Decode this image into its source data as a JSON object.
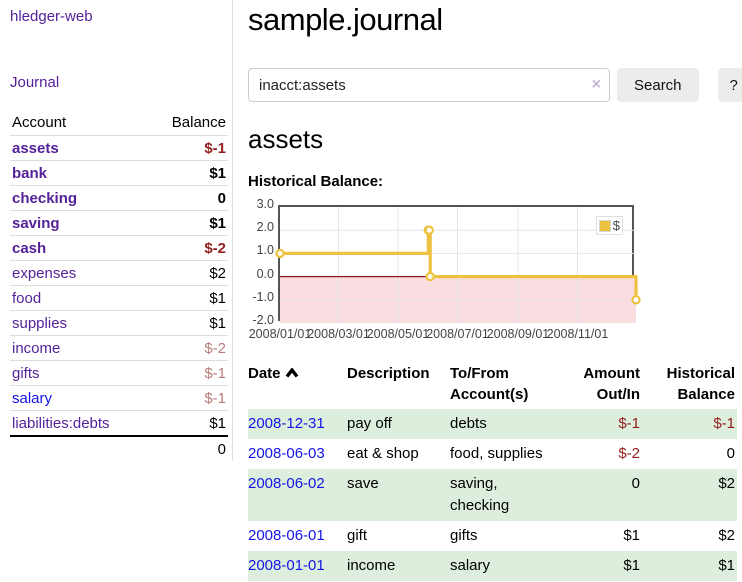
{
  "app": {
    "title": "hledger-web"
  },
  "palette": {
    "link_purple": "#552299",
    "link_blue": "#1414e8",
    "negative_dark": "#941f1f",
    "negative_light": "#b97c7c",
    "row_green": "#ddeedd",
    "series_yellow": "#edc240"
  },
  "sidebar": {
    "journal_link": "Journal",
    "accounts_table": {
      "headers": [
        "Account",
        "Balance"
      ],
      "rows": [
        {
          "name": "assets",
          "balance": "$-1",
          "indent": 1,
          "bold": true,
          "negative": true,
          "negstyle": "dark"
        },
        {
          "name": "bank",
          "balance": "$1",
          "indent": 2,
          "bold": true,
          "negative": false
        },
        {
          "name": "checking",
          "balance": "0",
          "indent": 3,
          "bold": true,
          "negative": false
        },
        {
          "name": "saving",
          "balance": "$1",
          "indent": 3,
          "bold": true,
          "negative": false
        },
        {
          "name": "cash",
          "balance": "$-2",
          "indent": 2,
          "bold": true,
          "negative": true,
          "negstyle": "dark"
        },
        {
          "name": "expenses",
          "balance": "$2",
          "indent": 1,
          "bold": false,
          "negative": false
        },
        {
          "name": "food",
          "balance": "$1",
          "indent": 2,
          "bold": false,
          "negative": false
        },
        {
          "name": "supplies",
          "balance": "$1",
          "indent": 2,
          "bold": false,
          "negative": false
        },
        {
          "name": "income",
          "balance": "$-2",
          "indent": 1,
          "bold": false,
          "negative": true,
          "negstyle": "light"
        },
        {
          "name": "gifts",
          "balance": "$-1",
          "indent": 2,
          "bold": false,
          "negative": true,
          "negstyle": "light"
        },
        {
          "name": "salary",
          "balance": "$-1",
          "indent": 2,
          "bold": false,
          "negative": true,
          "negstyle": "light",
          "link_color": "blue"
        },
        {
          "name": "liabilities:debts",
          "balance": "$1",
          "indent": 1,
          "bold": false,
          "negative": false
        }
      ],
      "total": "0"
    }
  },
  "main": {
    "title": "sample.journal",
    "search": {
      "value": "inacct:assets",
      "clear_icon": "×",
      "button": "Search",
      "help_button": "?"
    },
    "section_title": "assets",
    "chart_title": "Historical Balance:"
  },
  "chart_data": {
    "type": "line",
    "style": "step",
    "title": "Historical Balance",
    "legend": "$",
    "legend_position": "top-right",
    "grid": true,
    "ylim": [
      -2,
      3
    ],
    "x_range": [
      "2008-01-01",
      "2008-12-31"
    ],
    "y_ticks": [
      "3.0",
      "2.0",
      "1.0",
      "0.0",
      "-1.0",
      "-2.0"
    ],
    "x_ticks": [
      "2008/01/01",
      "2008/03/01",
      "2008/05/01",
      "2008/07/01",
      "2008/09/01",
      "2008/11/01"
    ],
    "series": [
      {
        "name": "$",
        "color": "#edc240",
        "points": [
          [
            "2008-01-01",
            1
          ],
          [
            "2008-06-01",
            2
          ],
          [
            "2008-06-02",
            2
          ],
          [
            "2008-06-03",
            0
          ],
          [
            "2008-12-31",
            -1
          ]
        ]
      }
    ],
    "negative_region_color": "#fadde0",
    "zero_line_color": "#8b1a1a",
    "gridline_color": "#e4e4e4"
  },
  "register_table": {
    "headers": [
      "Date",
      "Description",
      "To/From Account(s)",
      "Amount Out/In",
      "Historical Balance"
    ],
    "rows": [
      {
        "date": "2008-12-31",
        "description": "pay off",
        "accounts": [
          "debts"
        ],
        "amount": "$-1",
        "amount_negative": true,
        "balance": "$-1",
        "balance_negative": true
      },
      {
        "date": "2008-06-03",
        "description": "eat & shop",
        "accounts": [
          "food, supplies"
        ],
        "amount": "$-2",
        "amount_negative": true,
        "balance": "0",
        "balance_negative": false
      },
      {
        "date": "2008-06-02",
        "description": "save",
        "accounts": [
          "saving,",
          "checking"
        ],
        "amount": "0",
        "amount_negative": false,
        "balance": "$2",
        "balance_negative": false
      },
      {
        "date": "2008-06-01",
        "description": "gift",
        "accounts": [
          "gifts"
        ],
        "amount": "$1",
        "amount_negative": false,
        "balance": "$2",
        "balance_negative": false
      },
      {
        "date": "2008-01-01",
        "description": "income",
        "accounts": [
          "salary"
        ],
        "amount": "$1",
        "amount_negative": false,
        "balance": "$1",
        "balance_negative": false
      }
    ]
  }
}
